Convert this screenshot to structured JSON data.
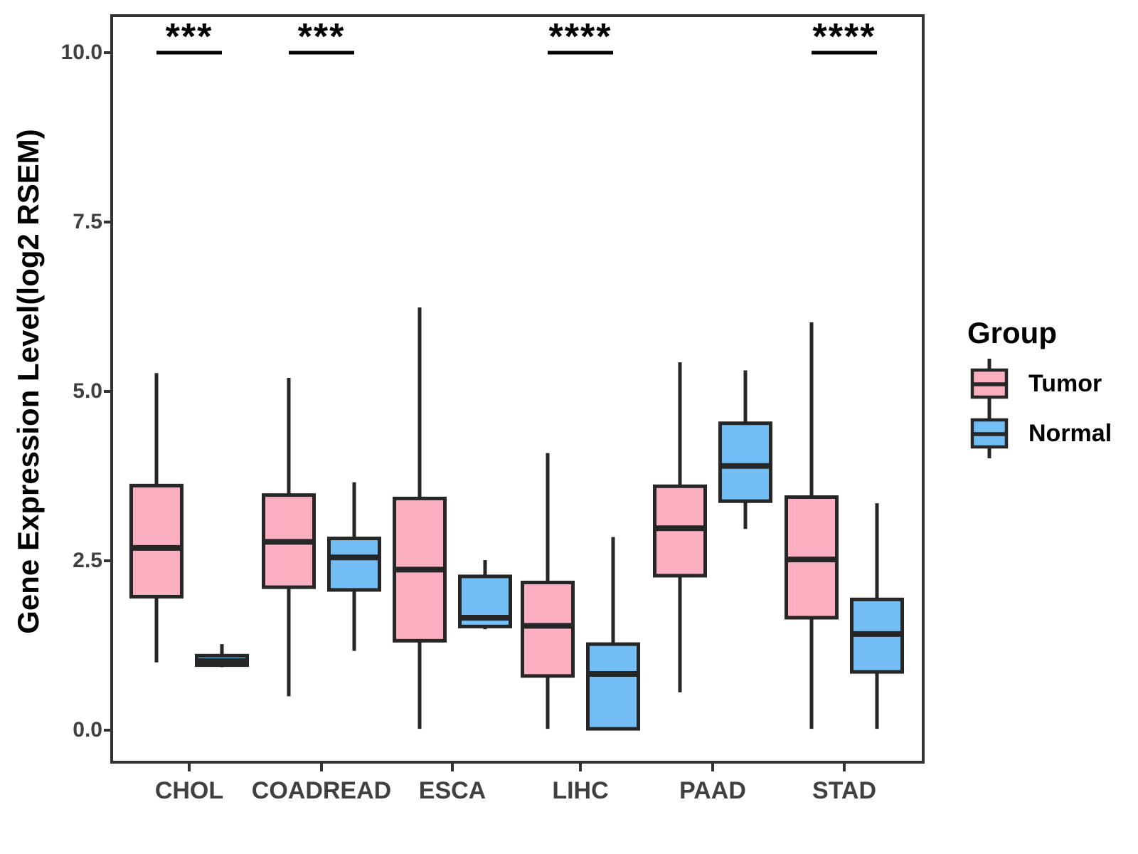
{
  "chart_data": {
    "type": "grouped_boxplot",
    "title": "",
    "xlabel": "",
    "ylabel": "Gene Expression Level(log2 RSEM)",
    "ylim": [
      0,
      10
    ],
    "yticks": [
      0.0,
      2.5,
      5.0,
      7.5,
      10.0
    ],
    "ytick_labels": [
      "0.0",
      "2.5",
      "5.0",
      "7.5",
      "10.0"
    ],
    "categories": [
      "CHOL",
      "COADREAD",
      "ESCA",
      "LIHC",
      "PAAD",
      "STAD"
    ],
    "grid": false,
    "legend": {
      "title": "Group",
      "position": "right"
    },
    "series": [
      {
        "name": "Tumor",
        "color": "#FBAFC1",
        "boxes": [
          {
            "whisker_low": 1.0,
            "q1": 1.97,
            "median": 2.69,
            "q3": 3.61,
            "whisker_high": 5.27
          },
          {
            "whisker_low": 0.5,
            "q1": 2.11,
            "median": 2.78,
            "q3": 3.47,
            "whisker_high": 5.2
          },
          {
            "whisker_low": 0.02,
            "q1": 1.32,
            "median": 2.37,
            "q3": 3.42,
            "whisker_high": 6.24
          },
          {
            "whisker_low": 0.02,
            "q1": 0.8,
            "median": 1.54,
            "q3": 2.18,
            "whisker_high": 4.09
          },
          {
            "whisker_low": 0.56,
            "q1": 2.28,
            "median": 2.98,
            "q3": 3.6,
            "whisker_high": 5.43
          },
          {
            "whisker_low": 0.02,
            "q1": 1.66,
            "median": 2.52,
            "q3": 3.44,
            "whisker_high": 6.02
          }
        ]
      },
      {
        "name": "Normal",
        "color": "#73BFF5",
        "boxes": [
          {
            "whisker_low": 0.93,
            "q1": 0.96,
            "median": 1.02,
            "q3": 1.1,
            "whisker_high": 1.27
          },
          {
            "whisker_low": 1.17,
            "q1": 2.07,
            "median": 2.55,
            "q3": 2.83,
            "whisker_high": 3.66
          },
          {
            "whisker_low": 1.49,
            "q1": 1.53,
            "median": 1.66,
            "q3": 2.27,
            "whisker_high": 2.51
          },
          {
            "whisker_low": 0.02,
            "q1": 0.02,
            "median": 0.83,
            "q3": 1.27,
            "whisker_high": 2.85
          },
          {
            "whisker_low": 2.97,
            "q1": 3.38,
            "median": 3.9,
            "q3": 4.53,
            "whisker_high": 5.31
          },
          {
            "whisker_low": 0.02,
            "q1": 0.86,
            "median": 1.42,
            "q3": 1.93,
            "whisker_high": 3.35
          }
        ]
      }
    ],
    "significance": [
      {
        "category": "CHOL",
        "label": "***"
      },
      {
        "category": "COADREAD",
        "label": "***"
      },
      {
        "category": "LIHC",
        "label": "****"
      },
      {
        "category": "STAD",
        "label": "****"
      }
    ],
    "colors": {
      "box_border": "#262626",
      "axis": "#333333",
      "tick_text": "#404040",
      "annotation": "#000000"
    }
  }
}
